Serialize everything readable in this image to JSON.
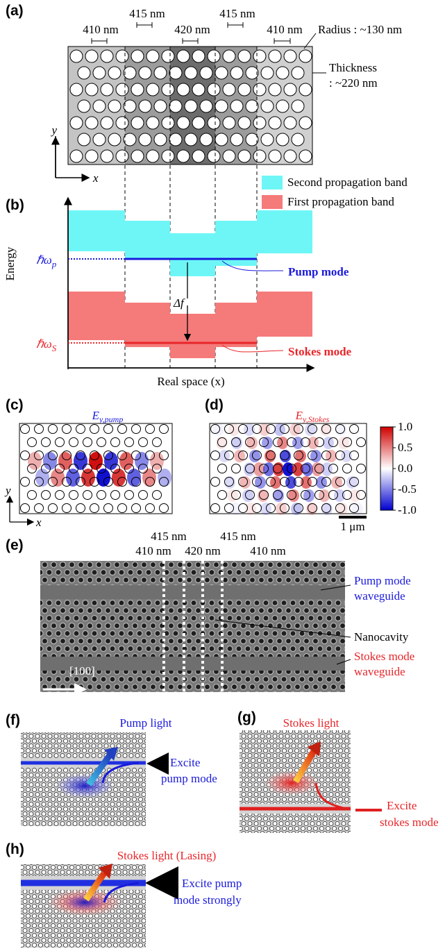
{
  "panels": {
    "a": {
      "label": "(a)",
      "dimensions": [
        "410 nm",
        "415 nm",
        "420 nm",
        "415 nm",
        "410 nm"
      ],
      "radius": "Radius : ~130 nm",
      "thickness": [
        "Thickness",
        ": ~220 nm"
      ],
      "axes": [
        "y",
        "x"
      ]
    },
    "b": {
      "label": "(b)",
      "legend": [
        "Second propagation band",
        "First propagation band"
      ],
      "y_label": "Energy",
      "x_label": "Real space (x)",
      "pump_level": {
        "symbol": "ℏω",
        "subscript": "p"
      },
      "stokes_level": {
        "symbol": "ℏω",
        "subscript": "S"
      },
      "detuning": "Δf",
      "pump_mode": "Pump mode",
      "stokes_mode": "Stokes mode"
    },
    "c": {
      "label": "(c)",
      "title": {
        "symbol": "E",
        "subscript": "y,pump"
      },
      "axes": [
        "y",
        "x"
      ]
    },
    "d": {
      "label": "(d)",
      "title": {
        "symbol": "E",
        "subscript": "y,Stokes"
      },
      "colorbar": [
        "1.0",
        "0.5",
        "0.0",
        "-0.5",
        "-1.0"
      ],
      "scale_bar": "1 μm"
    },
    "e": {
      "label": "(e)",
      "dimensions": [
        "415 nm",
        "410 nm",
        "420 nm",
        "415 nm",
        "410 nm"
      ],
      "direction": "[100]",
      "annotations": [
        [
          "Pump mode",
          "waveguide"
        ],
        [
          "Nanocavity"
        ],
        [
          "Stokes mode",
          "waveguide"
        ]
      ]
    },
    "f": {
      "label": "(f)",
      "light": "Pump light",
      "excite": [
        "Excite",
        "pump mode"
      ]
    },
    "g": {
      "label": "(g)",
      "light": "Stokes light",
      "excite": [
        "Excite",
        "stokes mode"
      ]
    },
    "h": {
      "label": "(h)",
      "light": "Stokes light (Lasing)",
      "excite": [
        "Excite pump",
        "mode strongly"
      ]
    }
  }
}
